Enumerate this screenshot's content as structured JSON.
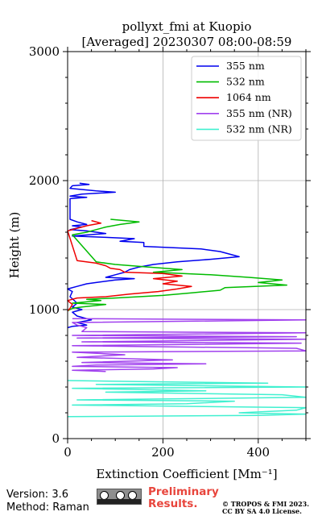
{
  "chart_data": {
    "type": "line",
    "title": [
      "pollyxt_fmi at Kuopio",
      "[Averaged] 20230307 08:00-08:59"
    ],
    "xlabel": "Extinction Coefficient [Mm⁻¹]",
    "ylabel": "Height (m)",
    "xlim": [
      0,
      500
    ],
    "ylim": [
      0,
      3000
    ],
    "xticks": [
      "0",
      "200",
      "400"
    ],
    "xtick_values": [
      0,
      200,
      400
    ],
    "yticks": [
      "0",
      "1000",
      "2000",
      "3000"
    ],
    "ytick_values": [
      0,
      1000,
      2000,
      3000
    ],
    "grid": true,
    "legend_position": "top-right",
    "series": [
      {
        "name": "355 nm",
        "color": "#0000ee",
        "points": [
          [
            25,
            1980
          ],
          [
            45,
            1970
          ],
          [
            10,
            1960
          ],
          [
            5,
            1940
          ],
          [
            60,
            1920
          ],
          [
            100,
            1910
          ],
          [
            30,
            1895
          ],
          [
            5,
            1880
          ],
          [
            40,
            1870
          ],
          [
            5,
            1860
          ],
          [
            5,
            1700
          ],
          [
            20,
            1680
          ],
          [
            40,
            1660
          ],
          [
            10,
            1650
          ],
          [
            30,
            1640
          ],
          [
            5,
            1620
          ],
          [
            40,
            1610
          ],
          [
            80,
            1590
          ],
          [
            10,
            1570
          ],
          [
            80,
            1560
          ],
          [
            140,
            1550
          ],
          [
            110,
            1530
          ],
          [
            160,
            1520
          ],
          [
            160,
            1490
          ],
          [
            280,
            1470
          ],
          [
            320,
            1450
          ],
          [
            360,
            1410
          ],
          [
            300,
            1390
          ],
          [
            230,
            1370
          ],
          [
            180,
            1350
          ],
          [
            150,
            1330
          ],
          [
            130,
            1310
          ],
          [
            120,
            1290
          ],
          [
            100,
            1270
          ],
          [
            80,
            1250
          ],
          [
            140,
            1240
          ],
          [
            100,
            1230
          ],
          [
            60,
            1210
          ],
          [
            40,
            1200
          ],
          [
            20,
            1180
          ],
          [
            0,
            1160
          ],
          [
            10,
            1140
          ],
          [
            5,
            1100
          ],
          [
            20,
            1050
          ],
          [
            10,
            1020
          ],
          [
            30,
            1000
          ],
          [
            10,
            980
          ],
          [
            20,
            950
          ],
          [
            30,
            940
          ],
          [
            50,
            920
          ],
          [
            20,
            900
          ],
          [
            40,
            880
          ],
          [
            10,
            870
          ],
          [
            0,
            860
          ]
        ]
      },
      {
        "name": "532 nm",
        "color": "#00bb00",
        "points": [
          [
            90,
            1700
          ],
          [
            150,
            1680
          ],
          [
            110,
            1660
          ],
          [
            80,
            1640
          ],
          [
            60,
            1620
          ],
          [
            40,
            1600
          ],
          [
            10,
            1580
          ],
          [
            60,
            1370
          ],
          [
            100,
            1350
          ],
          [
            170,
            1330
          ],
          [
            240,
            1310
          ],
          [
            180,
            1290
          ],
          [
            300,
            1270
          ],
          [
            380,
            1250
          ],
          [
            450,
            1230
          ],
          [
            400,
            1210
          ],
          [
            460,
            1190
          ],
          [
            330,
            1170
          ],
          [
            320,
            1150
          ],
          [
            260,
            1130
          ],
          [
            200,
            1110
          ],
          [
            100,
            1090
          ],
          [
            40,
            1080
          ],
          [
            70,
            1070
          ],
          [
            10,
            1050
          ],
          [
            80,
            1040
          ],
          [
            30,
            1020
          ],
          [
            10,
            1010
          ],
          [
            0,
            990
          ]
        ]
      },
      {
        "name": "1064 nm",
        "color": "#ee0000",
        "points": [
          [
            50,
            1690
          ],
          [
            70,
            1670
          ],
          [
            40,
            1650
          ],
          [
            20,
            1630
          ],
          [
            0,
            1610
          ],
          [
            20,
            1380
          ],
          [
            60,
            1360
          ],
          [
            80,
            1340
          ],
          [
            90,
            1320
          ],
          [
            110,
            1310
          ],
          [
            120,
            1290
          ],
          [
            200,
            1280
          ],
          [
            240,
            1260
          ],
          [
            180,
            1240
          ],
          [
            230,
            1220
          ],
          [
            200,
            1200
          ],
          [
            260,
            1180
          ],
          [
            230,
            1160
          ],
          [
            190,
            1140
          ],
          [
            130,
            1120
          ],
          [
            80,
            1100
          ],
          [
            20,
            1090
          ],
          [
            0,
            1070
          ],
          [
            10,
            1040
          ],
          [
            5,
            1010
          ],
          [
            0,
            990
          ]
        ]
      },
      {
        "name": "355 nm (NR)",
        "color": "#a040ee",
        "points": [
          [
            10,
            930
          ],
          [
            500,
            920
          ],
          [
            10,
            900
          ],
          [
            20,
            880
          ],
          [
            40,
            860
          ],
          [
            30,
            830
          ],
          [
            500,
            820
          ],
          [
            10,
            800
          ],
          [
            480,
            790
          ],
          [
            20,
            780
          ],
          [
            500,
            770
          ],
          [
            30,
            750
          ],
          [
            490,
            740
          ],
          [
            10,
            720
          ],
          [
            480,
            700
          ],
          [
            500,
            680
          ],
          [
            10,
            670
          ],
          [
            120,
            650
          ],
          [
            20,
            630
          ],
          [
            220,
            610
          ],
          [
            30,
            590
          ],
          [
            290,
            580
          ],
          [
            60,
            570
          ],
          [
            10,
            560
          ],
          [
            230,
            550
          ],
          [
            180,
            540
          ],
          [
            10,
            530
          ],
          [
            80,
            520
          ]
        ]
      },
      {
        "name": "532 nm (NR)",
        "color": "#40f0d0",
        "points": [
          [
            0,
            450
          ],
          [
            200,
            440
          ],
          [
            420,
            430
          ],
          [
            60,
            420
          ],
          [
            500,
            400
          ],
          [
            10,
            390
          ],
          [
            290,
            370
          ],
          [
            80,
            360
          ],
          [
            450,
            340
          ],
          [
            500,
            320
          ],
          [
            20,
            300
          ],
          [
            350,
            290
          ],
          [
            250,
            270
          ],
          [
            10,
            260
          ],
          [
            500,
            240
          ],
          [
            480,
            220
          ],
          [
            360,
            200
          ],
          [
            500,
            190
          ],
          [
            400,
            180
          ],
          [
            0,
            170
          ]
        ]
      }
    ]
  },
  "footer": {
    "version": "Version: 3.6",
    "method": "Method: Raman",
    "badge_text": "cc by sa",
    "preliminary_line1": "Preliminary",
    "preliminary_line2": "Results.",
    "copyright_line1": "© TROPOS & FMI 2023.",
    "copyright_line2": "CC BY SA 4.0 License."
  }
}
